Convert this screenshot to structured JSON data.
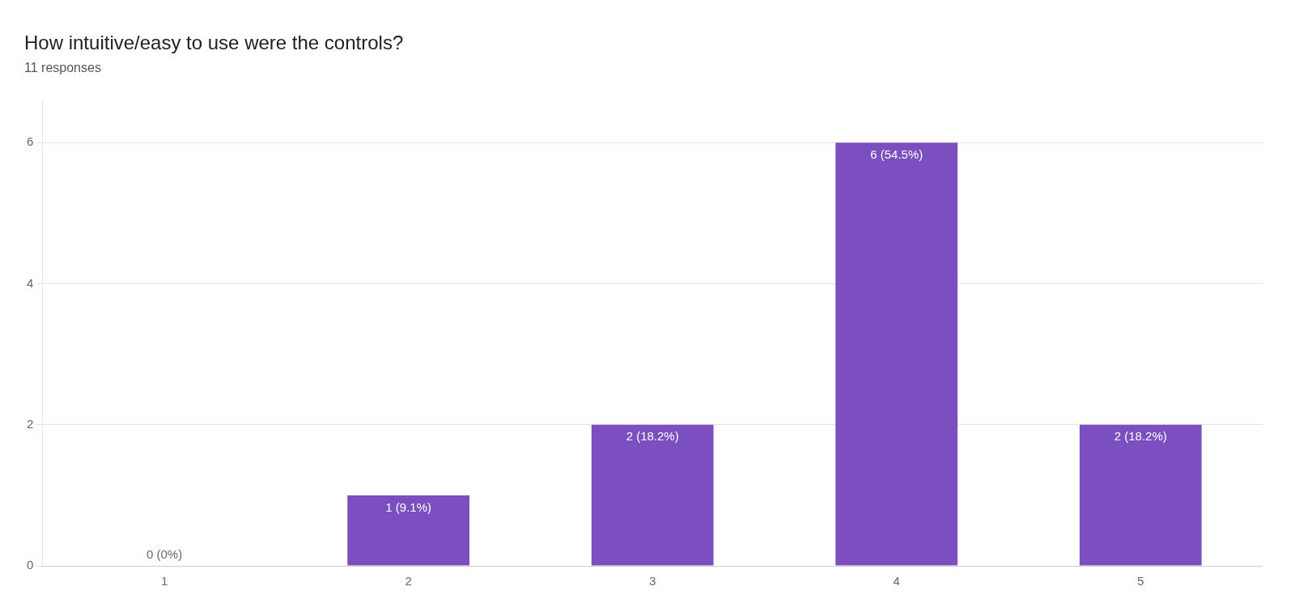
{
  "chart_data": {
    "type": "bar",
    "title": "How intuitive/easy to use were the controls?",
    "subtitle": "11 responses",
    "categories": [
      "1",
      "2",
      "3",
      "4",
      "5"
    ],
    "values": [
      0,
      1,
      2,
      6,
      2
    ],
    "value_labels": [
      "0 (0%)",
      "1 (9.1%)",
      "2 (18.2%)",
      "6 (54.5%)",
      "2 (18.2%)"
    ],
    "data_labels": true,
    "color": "#7B4FBF",
    "ylim": [
      0,
      6.6
    ],
    "yticks": [
      0,
      2,
      4,
      6
    ],
    "grid": true
  }
}
